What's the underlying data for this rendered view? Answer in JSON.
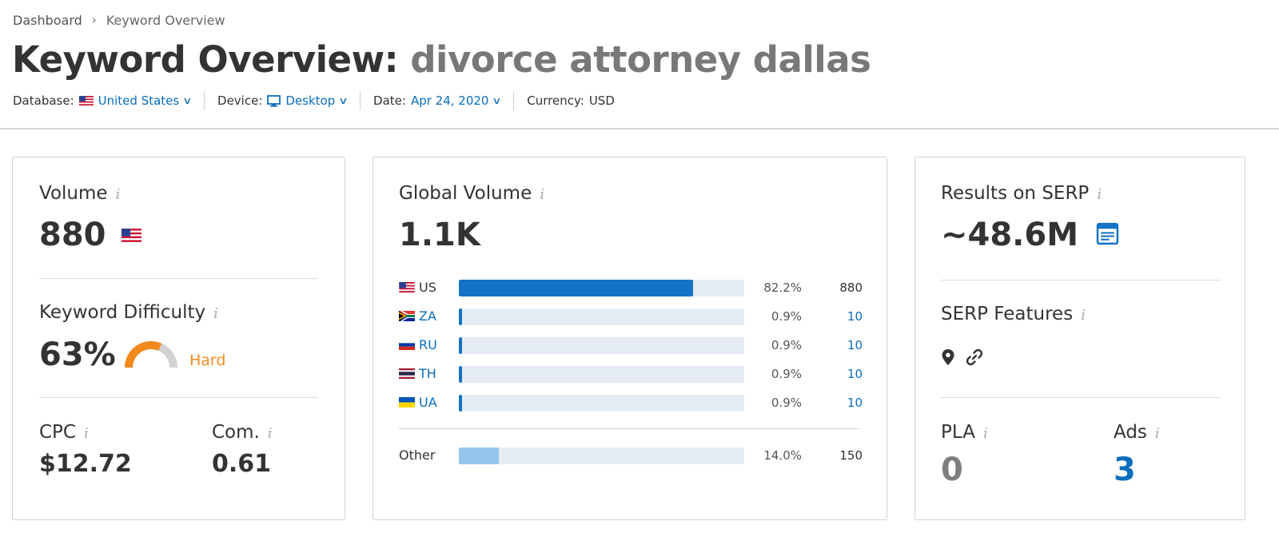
{
  "breadcrumb": {
    "root": "Dashboard",
    "current": "Keyword Overview"
  },
  "header": {
    "title_prefix": "Keyword Overview:",
    "keyword": "divorce attorney dallas"
  },
  "filters": {
    "database_label": "Database:",
    "database_value": "United States",
    "device_label": "Device:",
    "device_value": "Desktop",
    "date_label": "Date:",
    "date_value": "Apr 24, 2020",
    "currency_label": "Currency:",
    "currency_value": "USD"
  },
  "volume_card": {
    "volume_label": "Volume",
    "volume_value": "880",
    "kd_label": "Keyword Difficulty",
    "kd_value": "63%",
    "kd_fraction": 0.63,
    "kd_level": "Hard",
    "cpc_label": "CPC",
    "cpc_value": "$12.72",
    "com_label": "Com.",
    "com_value": "0.61"
  },
  "global_card": {
    "label": "Global Volume",
    "value": "1.1K",
    "rows": [
      {
        "country": "US",
        "percent": "82.2%",
        "share": 0.822,
        "volume": "880"
      },
      {
        "country": "ZA",
        "percent": "0.9%",
        "share": 0.009,
        "volume": "10"
      },
      {
        "country": "RU",
        "percent": "0.9%",
        "share": 0.009,
        "volume": "10"
      },
      {
        "country": "TH",
        "percent": "0.9%",
        "share": 0.009,
        "volume": "10"
      },
      {
        "country": "UA",
        "percent": "0.9%",
        "share": 0.009,
        "volume": "10"
      }
    ],
    "other": {
      "label": "Other",
      "percent": "14.0%",
      "share": 0.14,
      "volume": "150"
    }
  },
  "serp_card": {
    "results_label": "Results on SERP",
    "results_value": "~48.6M",
    "features_label": "SERP Features",
    "features_icons": [
      "map-pin-icon",
      "link-icon"
    ],
    "pla_label": "PLA",
    "pla_value": "0",
    "ads_label": "Ads",
    "ads_value": "3"
  },
  "info_glyph": "i"
}
